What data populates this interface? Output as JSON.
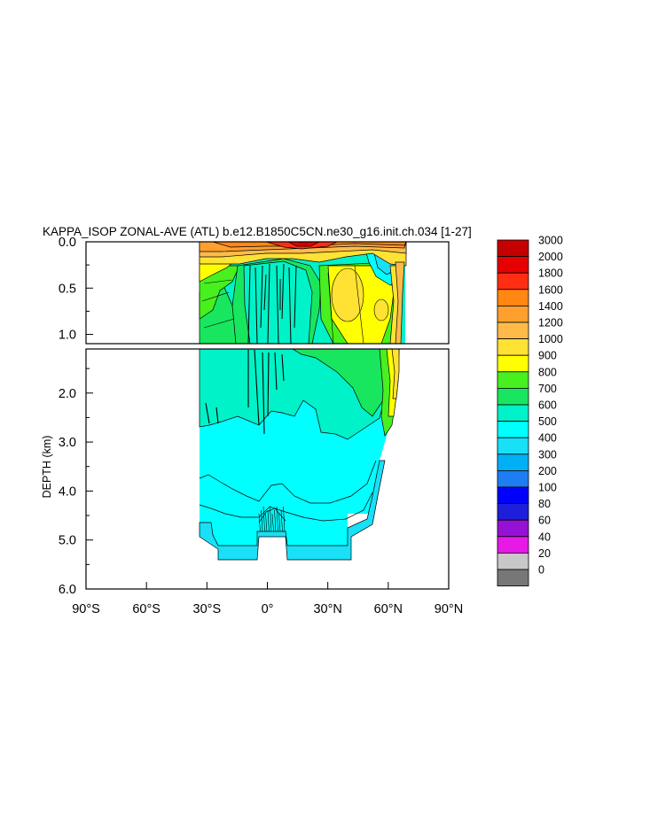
{
  "chart_data": {
    "type": "heatmap",
    "title": "KAPPA_ISOP ZONAL-AVE (ATL) b.e12.B1850C5CN.ne30_g16.init.ch.034 [1-27]",
    "xlabel": "",
    "ylabel": "DEPTH (km)",
    "x_tick_labels": [
      "90°S",
      "60°S",
      "30°S",
      "0°",
      "30°N",
      "60°N",
      "90°N"
    ],
    "x_ticks": [
      -90,
      -60,
      -30,
      0,
      30,
      60,
      90
    ],
    "xlim": [
      -90,
      90
    ],
    "ylim": [
      6.0,
      0.0
    ],
    "y_scale": "split: upper panel 0.0–1.1 km stretched, lower panel 1.1–6.0 km",
    "upper_y_tick_labels": [
      "0.0",
      "0.5",
      "1.0"
    ],
    "upper_y_ticks": [
      0.0,
      0.5,
      1.0
    ],
    "lower_y_tick_labels": [
      "2.0",
      "3.0",
      "4.0",
      "5.0",
      "6.0"
    ],
    "lower_y_ticks": [
      2.0,
      3.0,
      4.0,
      5.0,
      6.0
    ],
    "data_extent": {
      "lat_min": -34,
      "lat_max": 70
    },
    "colorbar": {
      "levels": [
        "0",
        "20",
        "40",
        "60",
        "80",
        "100",
        "200",
        "300",
        "400",
        "500",
        "600",
        "700",
        "800",
        "900",
        "1000",
        "1200",
        "1400",
        "1600",
        "1800",
        "2000",
        "3000"
      ],
      "colors": [
        "#777777",
        "#c8c8c8",
        "#e619e6",
        "#9611d6",
        "#1f1fdb",
        "#0000ff",
        "#1e7df2",
        "#00b0f7",
        "#19e0f7",
        "#00ffff",
        "#00f2c8",
        "#19e65f",
        "#47f01e",
        "#ffff00",
        "#ffe234",
        "#ffbb4a",
        "#ffa02e",
        "#ff8712",
        "#ff2e12",
        "#e60000",
        "#c40000"
      ]
    },
    "grid": false,
    "legend": "right colorbar"
  }
}
